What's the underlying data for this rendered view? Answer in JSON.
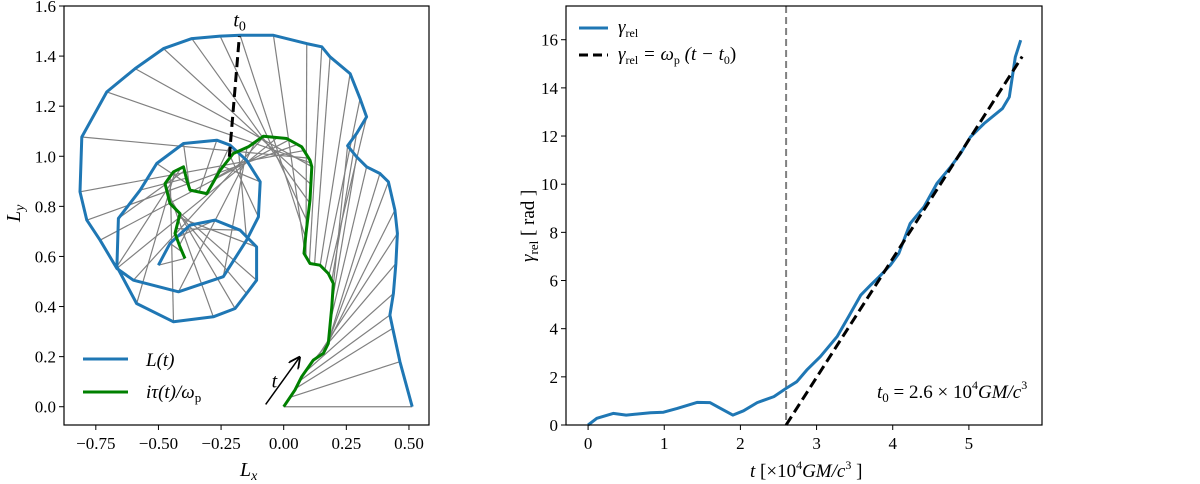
{
  "colors": {
    "L": "#1f77b4",
    "tau": "#008000",
    "connector": "#808080",
    "fit": "#000000",
    "t0_line": "#808080"
  },
  "chart_data": [
    {
      "type": "line",
      "xlabel": {
        "main": "L",
        "sub": "x"
      },
      "ylabel": {
        "main": "L",
        "sub": "y"
      },
      "xlim": [
        -0.877,
        0.58
      ],
      "ylim": [
        -0.073,
        1.6
      ],
      "grid": false,
      "legend_placement": "lower-left",
      "xticks": [
        -0.75,
        -0.5,
        -0.25,
        0,
        0.25,
        0.5
      ],
      "xtick_labels": [
        "−0.75",
        "−0.50",
        "−0.25",
        "0.00",
        "0.25",
        "0.50"
      ],
      "yticks": [
        0,
        0.2,
        0.4,
        0.6,
        0.8,
        1.0,
        1.2,
        1.4,
        1.6
      ],
      "ytick_labels": [
        "0.0",
        "0.2",
        "0.4",
        "0.6",
        "0.8",
        "1.0",
        "1.2",
        "1.4",
        "1.6"
      ],
      "series": [
        {
          "name": "L(t)",
          "legend": {
            "text": "L(t)"
          },
          "color": "#1f77b4",
          "points": [
            [
              0.513,
              0.0
            ],
            [
              0.464,
              0.18
            ],
            [
              0.435,
              0.313
            ],
            [
              0.424,
              0.366
            ],
            [
              0.438,
              0.452
            ],
            [
              0.448,
              0.572
            ],
            [
              0.454,
              0.692
            ],
            [
              0.444,
              0.785
            ],
            [
              0.418,
              0.898
            ],
            [
              0.384,
              0.931
            ],
            [
              0.331,
              0.958
            ],
            [
              0.291,
              0.998
            ],
            [
              0.255,
              1.042
            ],
            [
              0.291,
              1.091
            ],
            [
              0.331,
              1.157
            ],
            [
              0.305,
              1.23
            ],
            [
              0.265,
              1.33
            ],
            [
              0.185,
              1.397
            ],
            [
              0.152,
              1.437
            ],
            [
              0.092,
              1.45
            ],
            [
              -0.041,
              1.483
            ],
            [
              -0.174,
              1.483
            ],
            [
              -0.254,
              1.48
            ],
            [
              -0.367,
              1.47
            ],
            [
              -0.48,
              1.43
            ],
            [
              -0.593,
              1.35
            ],
            [
              -0.706,
              1.257
            ],
            [
              -0.806,
              1.077
            ],
            [
              -0.813,
              0.858
            ],
            [
              -0.786,
              0.745
            ],
            [
              -0.733,
              0.665
            ],
            [
              -0.666,
              0.552
            ],
            [
              -0.6,
              0.505
            ],
            [
              -0.42,
              0.459
            ],
            [
              -0.241,
              0.519
            ],
            [
              -0.148,
              0.665
            ],
            [
              -0.101,
              0.758
            ],
            [
              -0.094,
              0.898
            ],
            [
              -0.148,
              0.984
            ],
            [
              -0.214,
              1.044
            ],
            [
              -0.267,
              1.064
            ],
            [
              -0.4,
              1.051
            ],
            [
              -0.507,
              0.971
            ],
            [
              -0.573,
              0.865
            ],
            [
              -0.66,
              0.752
            ],
            [
              -0.666,
              0.559
            ],
            [
              -0.587,
              0.412
            ],
            [
              -0.44,
              0.339
            ],
            [
              -0.281,
              0.359
            ],
            [
              -0.194,
              0.392
            ],
            [
              -0.148,
              0.452
            ],
            [
              -0.108,
              0.505
            ],
            [
              -0.108,
              0.638
            ],
            [
              -0.174,
              0.705
            ],
            [
              -0.274,
              0.745
            ],
            [
              -0.374,
              0.725
            ],
            [
              -0.454,
              0.652
            ],
            [
              -0.5,
              0.565
            ]
          ]
        },
        {
          "name": "iτ(t)/ωp",
          "legend": {
            "main": "iτ(t)/ω",
            "sub": "p"
          },
          "color": "#008000",
          "points": [
            [
              0,
              0
            ],
            [
              0.045,
              0.067
            ],
            [
              0.072,
              0.12
            ],
            [
              0.118,
              0.186
            ],
            [
              0.158,
              0.213
            ],
            [
              0.178,
              0.253
            ],
            [
              0.192,
              0.399
            ],
            [
              0.198,
              0.492
            ],
            [
              0.178,
              0.532
            ],
            [
              0.145,
              0.565
            ],
            [
              0.105,
              0.572
            ],
            [
              0.081,
              0.612
            ],
            [
              0.089,
              0.692
            ],
            [
              0.105,
              0.825
            ],
            [
              0.112,
              0.958
            ],
            [
              0.105,
              0.984
            ],
            [
              0.072,
              1.038
            ],
            [
              0.012,
              1.071
            ],
            [
              -0.081,
              1.08
            ],
            [
              -0.141,
              1.038
            ],
            [
              -0.201,
              1.011
            ],
            [
              -0.254,
              0.944
            ],
            [
              -0.307,
              0.851
            ],
            [
              -0.374,
              0.865
            ],
            [
              -0.387,
              0.905
            ],
            [
              -0.4,
              0.958
            ],
            [
              -0.44,
              0.938
            ],
            [
              -0.474,
              0.891
            ],
            [
              -0.454,
              0.812
            ],
            [
              -0.414,
              0.771
            ],
            [
              -0.434,
              0.692
            ],
            [
              -0.414,
              0.638
            ],
            [
              -0.394,
              0.592
            ]
          ]
        }
      ],
      "t0_marker": {
        "points": [
          [
            -0.217,
            0.998
          ],
          [
            -0.177,
            1.479
          ]
        ],
        "label": {
          "main": "t",
          "sub": "0"
        }
      },
      "time_arrow": {
        "from": [
          -0.072,
          0.009
        ],
        "to": [
          0.063,
          0.197
        ],
        "label": "t"
      }
    },
    {
      "type": "line",
      "xlabel": {
        "pre": "t",
        "text1": " [×10",
        "sup1": "4",
        "text2": "GM/c",
        "sup2": "3",
        "text3": " ]"
      },
      "ylabel": {
        "main": "γ",
        "sub": "rel",
        "unit": " [ rad ]"
      },
      "xlim": [
        -0.29,
        5.96
      ],
      "ylim": [
        0,
        17.4
      ],
      "grid": false,
      "legend_placement": "top-left",
      "xticks": [
        0,
        1,
        2,
        3,
        4,
        5
      ],
      "xtick_labels": [
        "0",
        "1",
        "2",
        "3",
        "4",
        "5"
      ],
      "yticks": [
        0,
        2,
        4,
        6,
        8,
        10,
        12,
        14,
        16
      ],
      "ytick_labels": [
        "0",
        "2",
        "4",
        "6",
        "8",
        "10",
        "12",
        "14",
        "16"
      ],
      "series": [
        {
          "name": "γrel",
          "legend": {
            "main": "γ",
            "sub": "rel"
          },
          "color": "#1f77b4",
          "x": [
            0,
            0.114,
            0.33,
            0.5,
            0.82,
            0.99,
            1.17,
            1.43,
            1.6,
            1.74,
            1.9,
            2.04,
            2.22,
            2.44,
            2.6,
            2.74,
            2.87,
            3.05,
            3.27,
            3.42,
            3.58,
            3.71,
            3.82,
            3.97,
            4.08,
            4.23,
            4.41,
            4.58,
            4.76,
            4.89,
            5.02,
            5.2,
            5.44,
            5.53,
            5.61,
            5.68
          ],
          "y": [
            0,
            0.28,
            0.48,
            0.41,
            0.51,
            0.53,
            0.69,
            0.94,
            0.93,
            0.69,
            0.41,
            0.59,
            0.93,
            1.18,
            1.52,
            1.8,
            2.28,
            2.84,
            3.67,
            4.5,
            5.39,
            5.81,
            6.15,
            6.64,
            7.12,
            8.37,
            9.06,
            10.03,
            10.72,
            11.27,
            11.96,
            12.52,
            13.14,
            13.62,
            15.28,
            15.98
          ]
        },
        {
          "name": "γrel = ωp (t − t0)",
          "legend": {
            "m1": "γ",
            "s1": "rel",
            "m2": " = ω",
            "s2": "p",
            "m3": " (t − t",
            "s3": "0",
            "m4": ")"
          },
          "color": "#000000",
          "style": "dashed",
          "x": [
            2.6,
            5.7
          ],
          "y": [
            0,
            15.3
          ]
        }
      ],
      "vline": {
        "x": 2.6,
        "style": "dashed",
        "color": "#808080"
      },
      "annotation": {
        "m1": "t",
        "s1": "0",
        "m2": " = 2.6 × 10",
        "sup": "4",
        "m3": "GM/c",
        "sup2": "3"
      }
    }
  ]
}
